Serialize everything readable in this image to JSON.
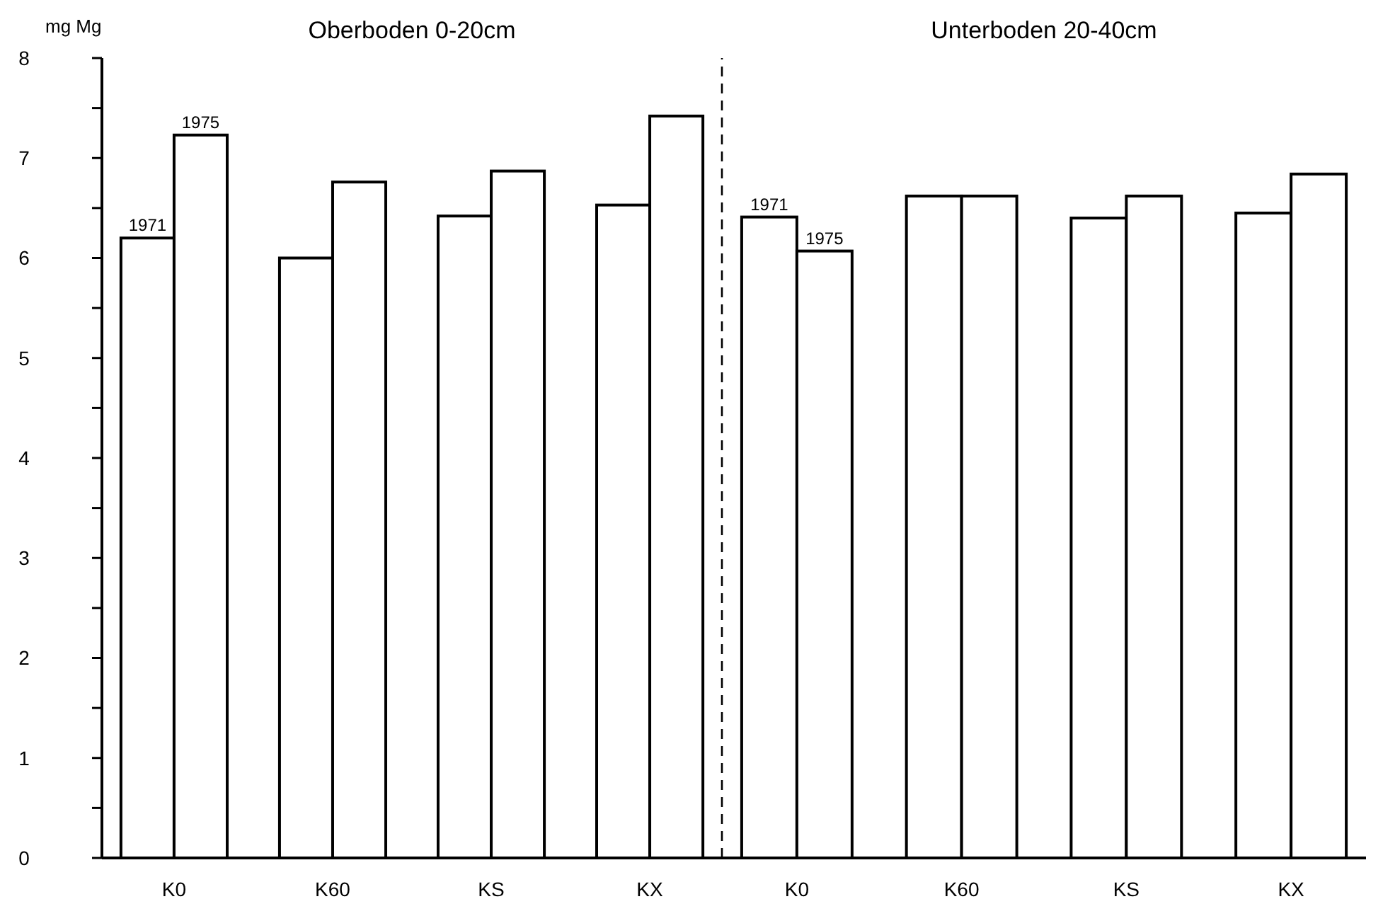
{
  "chart_data": [
    {
      "type": "bar",
      "title": "Oberboden 0-20cm",
      "ylabel": "mg Mg",
      "categories": [
        "K0",
        "K60",
        "KS",
        "KX"
      ],
      "series": [
        {
          "name": "1971",
          "color": "#ffffff",
          "values": [
            6.2,
            6.0,
            6.42,
            6.53
          ]
        },
        {
          "name": "1975",
          "color": "#ffffff",
          "values": [
            7.23,
            6.76,
            6.87,
            7.42
          ]
        }
      ],
      "ylim": [
        0,
        8
      ],
      "yticks": [
        0,
        {
          "value": 0.5,
          "label": null
        },
        1,
        {
          "value": 1.5,
          "label": null
        },
        2,
        {
          "value": 2.5,
          "label": null
        },
        3,
        {
          "value": 3.5,
          "label": null
        },
        4,
        {
          "value": 4.5,
          "label": null
        },
        5,
        {
          "value": 5.5,
          "label": null
        },
        6,
        {
          "value": 6.5,
          "label": null
        },
        7,
        {
          "value": 7.5,
          "label": null
        },
        8
      ],
      "grid": false,
      "legend": false
    },
    {
      "type": "bar",
      "title": "Unterboden 20-40cm",
      "categories": [
        "K0",
        "K60",
        "KS",
        "KX"
      ],
      "series": [
        {
          "name": "1971",
          "color": "#ffffff",
          "values": [
            6.41,
            6.62,
            6.4,
            6.45
          ]
        },
        {
          "name": "1975",
          "color": "#ffffff",
          "values": [
            6.07,
            6.62,
            6.62,
            6.84
          ]
        }
      ],
      "ylim": [
        0,
        8
      ],
      "tick_labels": "x",
      "grid": false,
      "legend": false
    }
  ]
}
